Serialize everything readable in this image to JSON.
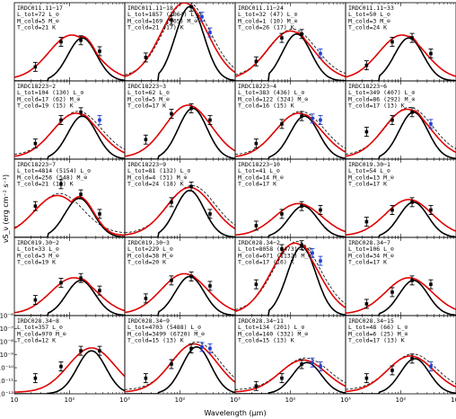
{
  "chart_data": {
    "type": "line",
    "grid": "4x5 panels",
    "xlabel": "Wavelength (μm)",
    "ylabel": "νS_ν (erg cm⁻² s⁻¹)",
    "x_scale": "log",
    "y_scale": "log",
    "xlim": [
      10,
      1000
    ],
    "ylim": [
      1e-12,
      1e-06
    ],
    "x_ticks": [
      "10",
      "10²",
      "10³"
    ],
    "y_ticks": [
      "10⁻⁶",
      "10⁻⁷",
      "10⁻⁸",
      "10⁻⁹",
      "10⁻¹⁰",
      "10⁻¹¹",
      "10⁻¹²"
    ],
    "series_style": {
      "total_fit": "#e00000",
      "cold_component": "#000000",
      "dashed_fit": "#000000",
      "data_points": "#000000",
      "blue_points": "#1f3fd0"
    },
    "panels": [
      {
        "lines": [
          "IRDC011.11−17",
          "L_tot=72 L_⊙",
          "M_cold=5 M_⊙",
          "T_cold=21 K"
        ],
        "dust_peak": 110,
        "cold_peak": 170,
        "cold_amp": 0.55,
        "dashed": false,
        "blue": false,
        "x": [
          24,
          70,
          160,
          350
        ],
        "y": [
          0.18,
          0.5,
          0.52,
          0.38
        ]
      },
      {
        "lines": [
          "IRDC011.11−18",
          "L_tot=1857 (2064) L_⊙",
          "M_cold=169 (365) M_⊙",
          "T_cold=21 (17) K"
        ],
        "dust_peak": 120,
        "cold_peak": 150,
        "cold_amp": 0.95,
        "dashed": true,
        "blue": true,
        "x": [
          24,
          70,
          160,
          250,
          350
        ],
        "y": [
          0.3,
          0.78,
          0.95,
          0.82,
          0.62
        ]
      },
      {
        "lines": [
          "IRDC011.11−24",
          "L_tot=32 (47) L_⊙",
          "M_cold=1 (10) M_⊙",
          "T_cold=26 (17) K"
        ],
        "dust_peak": 100,
        "cold_peak": 130,
        "cold_amp": 0.6,
        "dashed": true,
        "blue": true,
        "x": [
          24,
          70,
          160,
          350
        ],
        "y": [
          0.25,
          0.55,
          0.6,
          0.35
        ]
      },
      {
        "lines": [
          "IRDC011.11−33",
          "L_tot=50 L_⊙",
          "M_cold=3 M_⊙",
          "T_cold=24 K"
        ],
        "dust_peak": 105,
        "cold_peak": 140,
        "cold_amp": 0.55,
        "dashed": false,
        "blue": false,
        "x": [
          24,
          70,
          160,
          350
        ],
        "y": [
          0.2,
          0.5,
          0.55,
          0.35
        ]
      },
      {
        "lines": [
          "IRDC18223−2",
          "L_tot=104 (130) L_⊙",
          "M_cold=17 (62) M_⊙",
          "T_cold=19 (15) K"
        ],
        "dust_peak": 130,
        "cold_peak": 170,
        "cold_amp": 0.55,
        "dashed": true,
        "blue": true,
        "x": [
          24,
          70,
          160,
          350
        ],
        "y": [
          0.2,
          0.5,
          0.6,
          0.5
        ]
      },
      {
        "lines": [
          "IRDC18223−3",
          "L_tot=62 L_⊙",
          "M_cold=5 M_⊙",
          "T_cold=17 K"
        ],
        "dust_peak": 140,
        "cold_peak": 170,
        "cold_amp": 0.65,
        "dashed": false,
        "blue": false,
        "x": [
          24,
          70,
          160,
          350
        ],
        "y": [
          0.25,
          0.58,
          0.65,
          0.5
        ]
      },
      {
        "lines": [
          "IRDC18223−4",
          "L_tot=383 (436) L_⊙",
          "M_cold=122 (324) M_⊙",
          "T_cold=16 (15) K"
        ],
        "dust_peak": 140,
        "cold_peak": 180,
        "cold_amp": 0.55,
        "dashed": true,
        "blue": true,
        "x": [
          24,
          70,
          160,
          250,
          350
        ],
        "y": [
          0.2,
          0.45,
          0.55,
          0.52,
          0.5
        ]
      },
      {
        "lines": [
          "IRDC18223−6",
          "L_tot=349 (407) L_⊙",
          "M_cold=86 (292) M_⊙",
          "T_cold=17 (13) K"
        ],
        "dust_peak": 130,
        "cold_peak": 170,
        "cold_amp": 0.6,
        "dashed": true,
        "blue": true,
        "x": [
          24,
          70,
          160,
          350
        ],
        "y": [
          0.35,
          0.5,
          0.6,
          0.45
        ]
      },
      {
        "lines": [
          "IRDC18223−7",
          "L_tot=4814 (5154) L_⊙",
          "M_cold=256 (548) M_⊙",
          "T_cold=21 (18) K"
        ],
        "dust_peak": 60,
        "cold_peak": 150,
        "cold_amp": 0.5,
        "dashed": true,
        "blue": false,
        "x": [
          24,
          70,
          160,
          350
        ],
        "y": [
          0.4,
          0.68,
          0.55,
          0.3
        ]
      },
      {
        "lines": [
          "IRDC18223−9",
          "L_tot=81 (132) L_⊙",
          "M_cold=4 (31) M_⊙",
          "T_cold=24 (18) K"
        ],
        "dust_peak": 150,
        "cold_peak": 150,
        "cold_amp": 0.6,
        "dashed": true,
        "blue": false,
        "x": [
          70,
          160,
          350
        ],
        "y": [
          0.45,
          0.65,
          0.3
        ]
      },
      {
        "lines": [
          "IRDC18223−10",
          "L_tot=41 L_⊙",
          "M_cold=14 M_⊙",
          "T_cold=17 K"
        ],
        "dust_peak": 140,
        "cold_peak": 170,
        "cold_amp": 0.4,
        "dashed": false,
        "blue": false,
        "x": [
          24,
          70,
          160,
          350
        ],
        "y": [
          0.15,
          0.3,
          0.4,
          0.35
        ]
      },
      {
        "lines": [
          "IRDC019.30−1",
          "L_tot=54 L_⊙",
          "M_cold=13 M_⊙",
          "T_cold=17 K"
        ],
        "dust_peak": 140,
        "cold_peak": 170,
        "cold_amp": 0.45,
        "dashed": false,
        "blue": false,
        "x": [
          24,
          70,
          160,
          350
        ],
        "y": [
          0.2,
          0.35,
          0.45,
          0.35
        ]
      },
      {
        "lines": [
          "IRDC019.30−2",
          "L_tot=33 L_⊙",
          "M_cold=3 M_⊙",
          "T_cold=19 K"
        ],
        "dust_peak": 120,
        "cold_peak": 160,
        "cold_amp": 0.45,
        "dashed": false,
        "blue": false,
        "x": [
          24,
          70,
          160,
          350
        ],
        "y": [
          0.2,
          0.42,
          0.48,
          0.32
        ]
      },
      {
        "lines": [
          "IRDC019.30−3",
          "L_tot=229 L_⊙",
          "M_cold=38 M_⊙",
          "T_cold=20 K"
        ],
        "dust_peak": 120,
        "cold_peak": 150,
        "cold_amp": 0.5,
        "dashed": false,
        "blue": false,
        "x": [
          24,
          70,
          160,
          350
        ],
        "y": [
          0.22,
          0.45,
          0.5,
          0.38
        ]
      },
      {
        "lines": [
          "IRDC028.34−2",
          "L_tot=8058 (8473) L_⊙",
          "M_cold=671 (1132) M_⊙",
          "T_cold=17 (16) K"
        ],
        "dust_peak": 120,
        "cold_peak": 160,
        "cold_amp": 0.88,
        "dashed": true,
        "blue": true,
        "x": [
          24,
          70,
          160,
          250,
          350
        ],
        "y": [
          0.4,
          0.85,
          0.9,
          0.8,
          0.7
        ]
      },
      {
        "lines": [
          "IRDC028.34−7",
          "L_tot=106 L_⊙",
          "M_cold=34 M_⊙",
          "T_cold=17 K"
        ],
        "dust_peak": 140,
        "cold_peak": 170,
        "cold_amp": 0.45,
        "dashed": false,
        "blue": false,
        "x": [
          24,
          70,
          160,
          350
        ],
        "y": [
          0.15,
          0.3,
          0.45,
          0.4
        ]
      },
      {
        "lines": [
          "IRDC028.34−8",
          "L_tot=357 L_⊙",
          "M_cold=970 M_⊙",
          "T_cold=12 K"
        ],
        "dust_peak": 250,
        "cold_peak": 250,
        "cold_amp": 0.55,
        "dashed": false,
        "blue": false,
        "x": [
          24,
          70,
          160,
          350
        ],
        "y": [
          0.2,
          0.35,
          0.55,
          0.55
        ]
      },
      {
        "lines": [
          "IRDC028.34−9",
          "L_tot=4703 (5488) L_⊙",
          "M_cold=3499 (6720) M_⊙",
          "T_cold=15 (13) K"
        ],
        "dust_peak": 180,
        "cold_peak": 200,
        "cold_amp": 0.6,
        "dashed": true,
        "blue": true,
        "x": [
          24,
          70,
          160,
          250,
          350
        ],
        "y": [
          0.2,
          0.38,
          0.58,
          0.6,
          0.58
        ]
      },
      {
        "lines": [
          "IRDC028.34−11",
          "L_tot=134 (201) L_⊙",
          "M_cold=140 (332) M_⊙",
          "T_cold=15 (13) K"
        ],
        "dust_peak": 170,
        "cold_peak": 200,
        "cold_amp": 0.4,
        "dashed": true,
        "blue": true,
        "x": [
          24,
          70,
          160,
          250,
          350
        ],
        "y": [
          0.1,
          0.2,
          0.38,
          0.4,
          0.35
        ]
      },
      {
        "lines": [
          "IRDC028.34−15",
          "L_tot=48 (66) L_⊙",
          "M_cold=6 (25) M_⊙",
          "T_cold=17 (13) K"
        ],
        "dust_peak": 150,
        "cold_peak": 180,
        "cold_amp": 0.45,
        "dashed": true,
        "blue": true,
        "x": [
          24,
          70,
          160,
          350
        ],
        "y": [
          0.2,
          0.3,
          0.45,
          0.35
        ]
      }
    ]
  }
}
